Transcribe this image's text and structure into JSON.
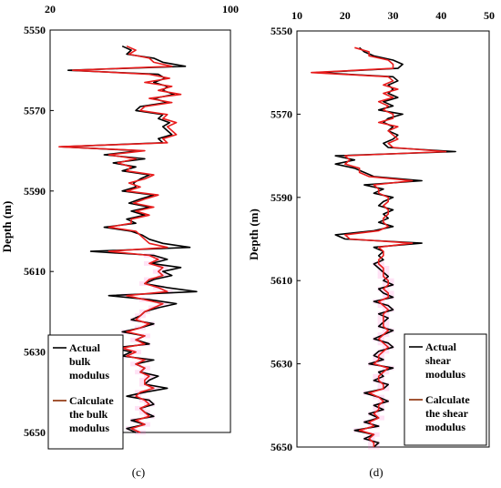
{
  "chart_data": [
    {
      "type": "line",
      "panel_label": "(c)",
      "ylabel": "Depth  (m)",
      "xlim": [
        20,
        100
      ],
      "x_ticks": [
        "20",
        "100"
      ],
      "ylim": [
        5550,
        5650
      ],
      "y_ticks": [
        "5550",
        "5570",
        "5590",
        "5610",
        "5630",
        "5650"
      ],
      "y_inverted": true,
      "legend_position": "bottom-left",
      "series": [
        {
          "name_lines": [
            "Actual",
            "bulk",
            "modulus"
          ],
          "color": "#000000",
          "depth": [
            5554,
            5555,
            5556,
            5557,
            5558,
            5559,
            5560,
            5561,
            5562,
            5563,
            5564,
            5565,
            5566,
            5567,
            5568,
            5569,
            5570,
            5571,
            5572,
            5573,
            5574,
            5575,
            5576,
            5577,
            5578,
            5579,
            5580,
            5581,
            5582,
            5583,
            5584,
            5585,
            5586,
            5587,
            5588,
            5589,
            5590,
            5591,
            5592,
            5593,
            5594,
            5595,
            5596,
            5597,
            5598,
            5599,
            5600,
            5601,
            5602,
            5603,
            5604,
            5605,
            5606,
            5607,
            5608,
            5609,
            5610,
            5611,
            5612,
            5613,
            5614,
            5615,
            5616,
            5617,
            5618,
            5619,
            5620,
            5621,
            5622,
            5623,
            5624,
            5625,
            5626,
            5627,
            5628,
            5629,
            5630,
            5631,
            5632,
            5633,
            5634,
            5635,
            5636,
            5637,
            5638,
            5639,
            5640,
            5641,
            5642,
            5643,
            5644,
            5645,
            5646,
            5647,
            5648,
            5649,
            5650
          ],
          "values": [
            52,
            56,
            54,
            66,
            70,
            80,
            28,
            68,
            71,
            66,
            72,
            70,
            75,
            66,
            72,
            60,
            58,
            70,
            68,
            73,
            70,
            72,
            74,
            68,
            70,
            25,
            60,
            44,
            62,
            48,
            58,
            52,
            64,
            60,
            57,
            58,
            52,
            66,
            60,
            55,
            64,
            56,
            62,
            54,
            58,
            44,
            56,
            61,
            64,
            70,
            82,
            38,
            66,
            72,
            65,
            78,
            70,
            74,
            66,
            62,
            72,
            85,
            46,
            64,
            76,
            68,
            62,
            60,
            56,
            66,
            60,
            52,
            62,
            58,
            64,
            48,
            56,
            52,
            66,
            58,
            62,
            60,
            68,
            64,
            62,
            72,
            62,
            54,
            64,
            66,
            60,
            62,
            66,
            56,
            62,
            54,
            58
          ]
        },
        {
          "name_lines": [
            "Calculate",
            "the bulk",
            "modulus"
          ],
          "color": "#e81c1c",
          "depth": [
            5554,
            5555,
            5556,
            5557,
            5558,
            5559,
            5560,
            5561,
            5562,
            5563,
            5564,
            5565,
            5566,
            5567,
            5568,
            5569,
            5570,
            5571,
            5572,
            5573,
            5574,
            5575,
            5576,
            5577,
            5578,
            5579,
            5580,
            5581,
            5582,
            5583,
            5584,
            5585,
            5586,
            5587,
            5588,
            5589,
            5590,
            5591,
            5592,
            5593,
            5594,
            5595,
            5596,
            5597,
            5598,
            5599,
            5600,
            5601,
            5602,
            5603,
            5604,
            5605,
            5606,
            5607,
            5608,
            5609,
            5610,
            5611,
            5612,
            5613,
            5614,
            5615,
            5616,
            5617,
            5618,
            5619,
            5620,
            5621,
            5622,
            5623,
            5624,
            5625,
            5626,
            5627,
            5628,
            5629,
            5630,
            5631,
            5632,
            5633,
            5634,
            5635,
            5636,
            5637,
            5638,
            5639,
            5640,
            5641,
            5642,
            5643,
            5644,
            5645,
            5646,
            5647,
            5648,
            5649,
            5650
          ],
          "values": [
            54,
            58,
            55,
            64,
            66,
            74,
            30,
            64,
            73,
            62,
            74,
            68,
            78,
            64,
            74,
            62,
            60,
            72,
            70,
            76,
            72,
            74,
            76,
            70,
            72,
            24,
            62,
            46,
            58,
            50,
            56,
            54,
            66,
            62,
            55,
            60,
            54,
            68,
            62,
            57,
            66,
            58,
            64,
            56,
            56,
            46,
            58,
            60,
            62,
            64,
            72,
            46,
            64,
            68,
            64,
            70,
            68,
            70,
            64,
            62,
            68,
            72,
            54,
            62,
            70,
            66,
            62,
            60,
            58,
            64,
            60,
            54,
            62,
            58,
            62,
            52,
            58,
            54,
            62,
            58,
            62,
            60,
            64,
            62,
            62,
            66,
            60,
            58,
            62,
            64,
            60,
            62,
            64,
            58,
            62,
            56,
            60
          ]
        }
      ]
    },
    {
      "type": "line",
      "panel_label": "(d)",
      "ylabel": "Depth  (m)",
      "xlim": [
        10,
        50
      ],
      "x_ticks": [
        "10",
        "20",
        "30",
        "40",
        "50"
      ],
      "ylim": [
        5550,
        5650
      ],
      "y_ticks": [
        "5550",
        "5570",
        "5590",
        "5610",
        "5630",
        "5650"
      ],
      "y_inverted": true,
      "legend_position": "bottom-right",
      "series": [
        {
          "name_lines": [
            "Actual",
            "shear",
            "modulus"
          ],
          "color": "#000000",
          "depth": [
            5554,
            5555,
            5556,
            5557,
            5558,
            5559,
            5560,
            5561,
            5562,
            5563,
            5564,
            5565,
            5566,
            5567,
            5568,
            5569,
            5570,
            5571,
            5572,
            5573,
            5574,
            5575,
            5576,
            5577,
            5578,
            5579,
            5580,
            5581,
            5582,
            5583,
            5584,
            5585,
            5586,
            5587,
            5588,
            5589,
            5590,
            5591,
            5592,
            5593,
            5594,
            5595,
            5596,
            5597,
            5598,
            5599,
            5600,
            5601,
            5602,
            5603,
            5604,
            5605,
            5606,
            5607,
            5608,
            5609,
            5610,
            5611,
            5612,
            5613,
            5614,
            5615,
            5616,
            5617,
            5618,
            5619,
            5620,
            5621,
            5622,
            5623,
            5624,
            5625,
            5626,
            5627,
            5628,
            5629,
            5630,
            5631,
            5632,
            5633,
            5634,
            5635,
            5636,
            5637,
            5638,
            5639,
            5640,
            5641,
            5642,
            5643,
            5644,
            5645,
            5646,
            5647,
            5648,
            5649,
            5650
          ],
          "values": [
            23,
            24,
            26,
            30,
            32,
            31,
            14,
            30,
            31,
            29,
            30,
            29,
            31,
            28,
            30,
            27,
            32,
            29,
            28,
            30,
            29,
            31,
            30,
            28,
            29,
            43,
            18,
            22,
            18,
            22,
            24,
            26,
            36,
            24,
            28,
            26,
            30,
            28,
            27,
            30,
            28,
            29,
            27,
            30,
            26,
            18,
            20,
            36,
            26,
            28,
            27,
            28,
            26,
            27,
            28,
            29,
            28,
            30,
            27,
            28,
            30,
            26,
            29,
            30,
            27,
            29,
            28,
            27,
            30,
            28,
            26,
            29,
            30,
            27,
            26,
            28,
            25,
            30,
            27,
            28,
            26,
            29,
            28,
            24,
            27,
            29,
            26,
            28,
            25,
            27,
            24,
            27,
            22,
            26,
            24,
            27,
            26
          ]
        },
        {
          "name_lines": [
            "Calculate",
            "the shear",
            "modulus"
          ],
          "color": "#e81c1c",
          "depth": [
            5554,
            5555,
            5556,
            5557,
            5558,
            5559,
            5560,
            5561,
            5562,
            5563,
            5564,
            5565,
            5566,
            5567,
            5568,
            5569,
            5570,
            5571,
            5572,
            5573,
            5574,
            5575,
            5576,
            5577,
            5578,
            5579,
            5580,
            5581,
            5582,
            5583,
            5584,
            5585,
            5586,
            5587,
            5588,
            5589,
            5590,
            5591,
            5592,
            5593,
            5594,
            5595,
            5596,
            5597,
            5598,
            5599,
            5600,
            5601,
            5602,
            5603,
            5604,
            5605,
            5606,
            5607,
            5608,
            5609,
            5610,
            5611,
            5612,
            5613,
            5614,
            5615,
            5616,
            5617,
            5618,
            5619,
            5620,
            5621,
            5622,
            5623,
            5624,
            5625,
            5626,
            5627,
            5628,
            5629,
            5630,
            5631,
            5632,
            5633,
            5634,
            5635,
            5636,
            5637,
            5638,
            5639,
            5640,
            5641,
            5642,
            5643,
            5644,
            5645,
            5646,
            5647,
            5648,
            5649,
            5650
          ],
          "values": [
            22,
            25,
            25,
            29,
            30,
            30,
            13,
            29,
            30,
            28,
            31,
            28,
            30,
            27,
            29,
            28,
            30,
            30,
            27,
            31,
            29,
            30,
            31,
            29,
            30,
            41,
            20,
            21,
            20,
            23,
            23,
            25,
            34,
            26,
            27,
            27,
            29,
            29,
            28,
            29,
            29,
            28,
            28,
            29,
            27,
            20,
            21,
            34,
            27,
            28,
            28,
            27,
            27,
            28,
            28,
            28,
            29,
            29,
            28,
            29,
            29,
            27,
            28,
            29,
            28,
            28,
            28,
            28,
            29,
            28,
            27,
            28,
            29,
            28,
            27,
            27,
            26,
            29,
            28,
            27,
            27,
            28,
            28,
            25,
            27,
            28,
            27,
            27,
            26,
            27,
            25,
            26,
            23,
            26,
            25,
            26,
            26
          ]
        }
      ]
    }
  ]
}
